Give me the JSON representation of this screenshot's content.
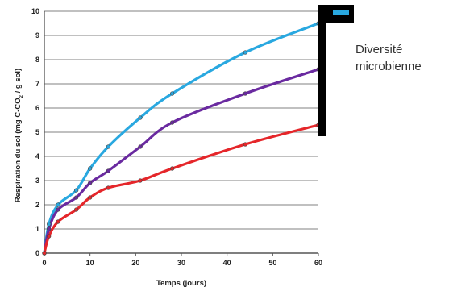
{
  "chart_data": {
    "type": "line",
    "xlabel": "Temps (jours)",
    "ylabel_main": "Respiration du sol (mg C-CO",
    "ylabel_sub": "2",
    "ylabel_end": " / g sol)",
    "xlim": [
      0,
      60
    ],
    "ylim": [
      0,
      10
    ],
    "xticks": [
      0,
      10,
      20,
      30,
      40,
      50,
      60
    ],
    "yticks": [
      0,
      1,
      2,
      3,
      4,
      5,
      6,
      7,
      8,
      9,
      10
    ],
    "grid": "horizontal",
    "legend": {
      "title_line1": "Diversité",
      "title_line2": "microbienne",
      "placement": "right"
    },
    "series": [
      {
        "color": "#29a8e0",
        "rank": "high",
        "x": [
          0,
          1,
          3,
          7,
          10,
          14,
          21,
          28,
          44,
          60
        ],
        "y": [
          0,
          1.2,
          2.0,
          2.6,
          3.5,
          4.4,
          5.6,
          6.6,
          8.3,
          9.5
        ]
      },
      {
        "color": "#6a2aa0",
        "rank": "medium",
        "x": [
          0,
          1,
          3,
          7,
          10,
          14,
          21,
          28,
          44,
          60
        ],
        "y": [
          0,
          1.0,
          1.8,
          2.3,
          2.9,
          3.4,
          4.4,
          5.4,
          6.6,
          7.6
        ]
      },
      {
        "color": "#e5262a",
        "rank": "low",
        "x": [
          0,
          1,
          3,
          7,
          10,
          14,
          21,
          28,
          44,
          60
        ],
        "y": [
          0,
          0.7,
          1.3,
          1.8,
          2.3,
          2.7,
          3.0,
          3.5,
          4.5,
          5.3
        ]
      }
    ]
  }
}
